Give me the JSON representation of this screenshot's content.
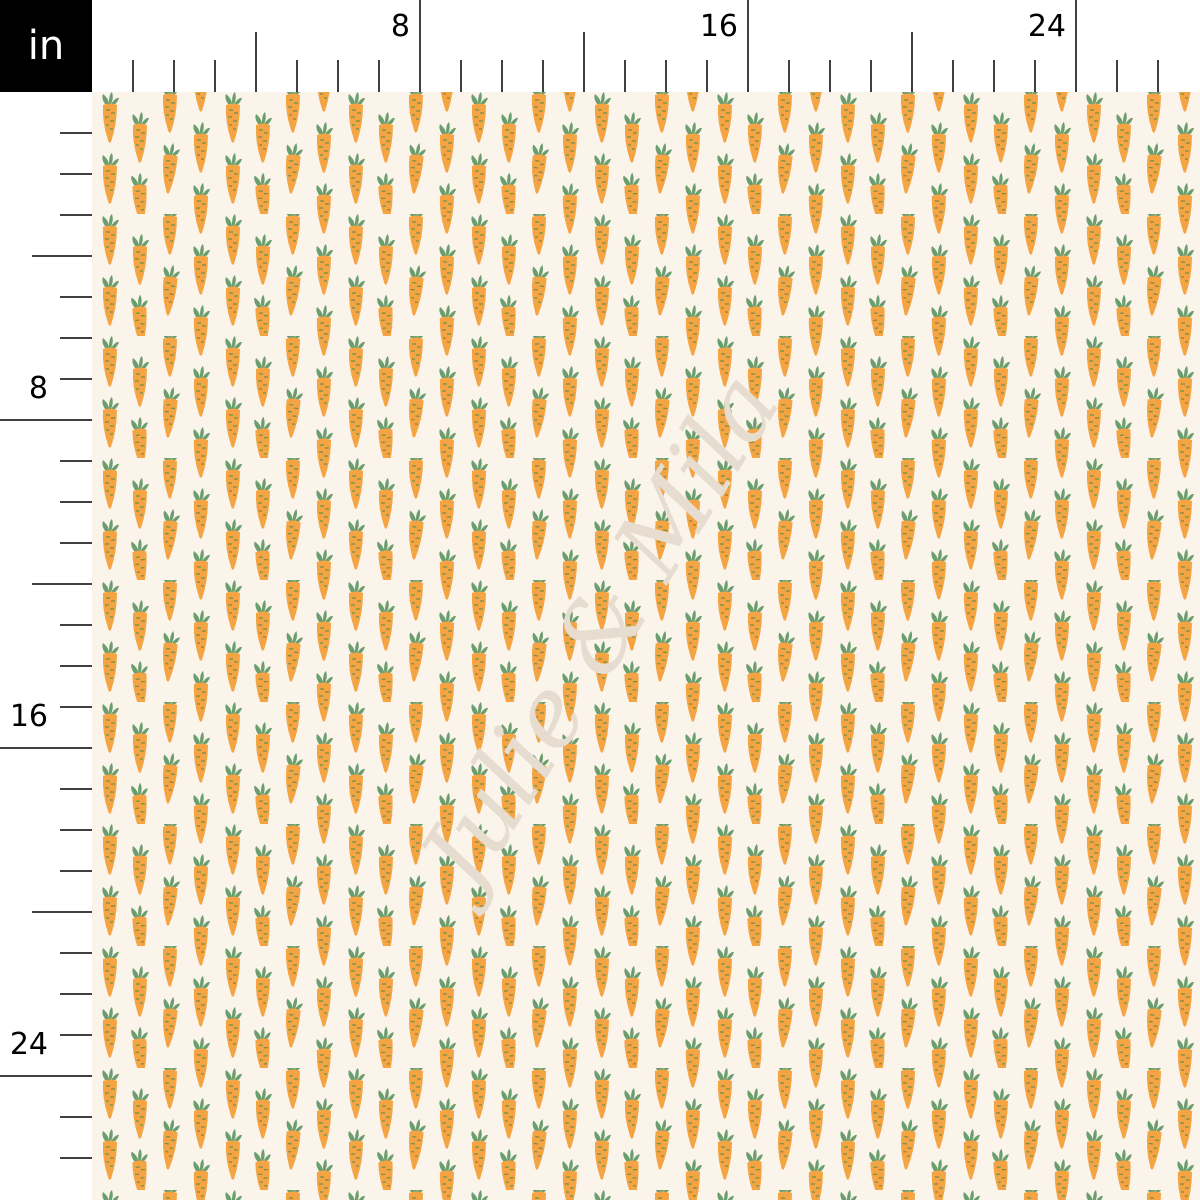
{
  "unit_label": "in",
  "ruler": {
    "top_labels": [
      "8",
      "16",
      "24"
    ],
    "left_labels": [
      "8",
      "16",
      "24"
    ],
    "inches_visible": 27
  },
  "fabric": {
    "motif": "carrot",
    "background_color": "#fbf4ea",
    "carrot_color": "#f5a444",
    "carrot_line_color": "#4f8a4a",
    "leaf_color": "#6a9e6e"
  },
  "watermark": "Julie & Mila"
}
